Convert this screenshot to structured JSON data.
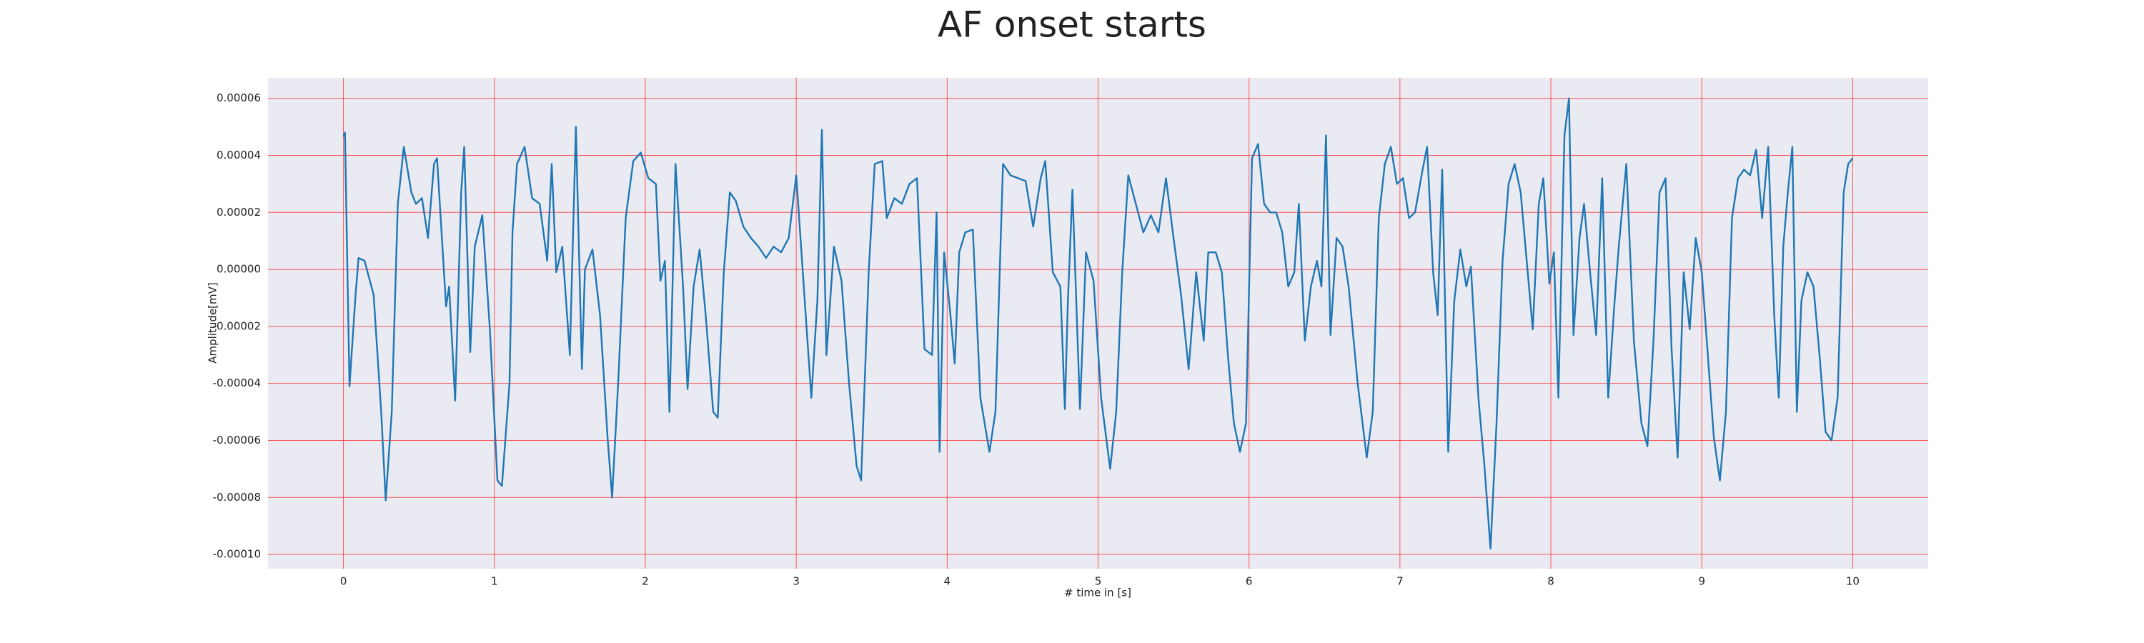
{
  "chart_data": {
    "type": "line",
    "title": "AF onset starts",
    "x_label": "# time in [s]",
    "y_label": "Amplitude[mV]",
    "color": "#1f77b4",
    "grid": true,
    "grid_color": "#ff3030",
    "background": "#eaeaf2",
    "xlim": [
      -0.5,
      10.5
    ],
    "ylim": [
      -0.000105,
      6.72e-05
    ],
    "xticks": [
      0,
      1,
      2,
      3,
      4,
      5,
      6,
      7,
      8,
      9,
      10
    ],
    "yticks": [
      {
        "value": -0.0001,
        "label": "-0.00010"
      },
      {
        "value": -8e-05,
        "label": "-0.00008"
      },
      {
        "value": -6e-05,
        "label": "-0.00006"
      },
      {
        "value": -4e-05,
        "label": "-0.00004"
      },
      {
        "value": -2e-05,
        "label": "-0.00002"
      },
      {
        "value": 0,
        "label": "0.00000"
      },
      {
        "value": 2e-05,
        "label": "0.00002"
      },
      {
        "value": 4e-05,
        "label": "0.00004"
      },
      {
        "value": 6e-05,
        "label": "0.00006"
      }
    ],
    "x": [
      0,
      0.01,
      0.04,
      0.08,
      0.1,
      0.14,
      0.2,
      0.25,
      0.28,
      0.32,
      0.36,
      0.4,
      0.45,
      0.48,
      0.52,
      0.56,
      0.6,
      0.62,
      0.68,
      0.7,
      0.74,
      0.78,
      0.8,
      0.84,
      0.87,
      0.92,
      0.97,
      1.02,
      1.05,
      1.1,
      1.12,
      1.15,
      1.2,
      1.25,
      1.3,
      1.35,
      1.38,
      1.41,
      1.45,
      1.5,
      1.54,
      1.58,
      1.6,
      1.65,
      1.7,
      1.75,
      1.78,
      1.82,
      1.87,
      1.92,
      1.97,
      2.02,
      2.07,
      2.1,
      2.13,
      2.16,
      2.2,
      2.25,
      2.28,
      2.32,
      2.36,
      2.4,
      2.45,
      2.48,
      2.52,
      2.56,
      2.6,
      2.65,
      2.7,
      2.75,
      2.8,
      2.85,
      2.9,
      2.95,
      3.0,
      3.05,
      3.1,
      3.14,
      3.17,
      3.2,
      3.25,
      3.3,
      3.35,
      3.4,
      3.43,
      3.48,
      3.52,
      3.57,
      3.6,
      3.65,
      3.7,
      3.75,
      3.8,
      3.85,
      3.9,
      3.93,
      3.95,
      3.98,
      4.02,
      4.05,
      4.08,
      4.12,
      4.17,
      4.22,
      4.28,
      4.32,
      4.37,
      4.42,
      4.47,
      4.52,
      4.57,
      4.62,
      4.65,
      4.7,
      4.75,
      4.78,
      4.8,
      4.83,
      4.88,
      4.92,
      4.97,
      5.02,
      5.08,
      5.12,
      5.16,
      5.2,
      5.25,
      5.3,
      5.35,
      5.4,
      5.45,
      5.5,
      5.55,
      5.6,
      5.65,
      5.7,
      5.73,
      5.78,
      5.82,
      5.86,
      5.9,
      5.94,
      5.98,
      6.02,
      6.06,
      6.1,
      6.14,
      6.18,
      6.22,
      6.26,
      6.3,
      6.33,
      6.37,
      6.41,
      6.45,
      6.48,
      6.51,
      6.54,
      6.58,
      6.62,
      6.66,
      6.72,
      6.78,
      6.82,
      6.86,
      6.9,
      6.94,
      6.98,
      7.02,
      7.06,
      7.1,
      7.15,
      7.18,
      7.22,
      7.25,
      7.28,
      7.32,
      7.36,
      7.4,
      7.44,
      7.47,
      7.52,
      7.56,
      7.6,
      7.64,
      7.68,
      7.72,
      7.76,
      7.8,
      7.84,
      7.88,
      7.92,
      7.95,
      7.99,
      8.02,
      8.05,
      8.09,
      8.12,
      8.15,
      8.19,
      8.22,
      8.26,
      8.3,
      8.34,
      8.38,
      8.42,
      8.45,
      8.5,
      8.55,
      8.6,
      8.64,
      8.68,
      8.72,
      8.76,
      8.8,
      8.84,
      8.88,
      8.92,
      8.96,
      9.0,
      9.04,
      9.08,
      9.12,
      9.16,
      9.2,
      9.24,
      9.28,
      9.32,
      9.36,
      9.4,
      9.44,
      9.48,
      9.51,
      9.54,
      9.57,
      9.6,
      9.63,
      9.66,
      9.7,
      9.74,
      9.78,
      9.82,
      9.86,
      9.9,
      9.94,
      9.97,
      10.0
    ],
    "values": [
      4.66e-05,
      4.8e-05,
      -4.1e-05,
      -9e-06,
      4e-06,
      3e-06,
      -9e-06,
      -5e-05,
      -8.1e-05,
      -5e-05,
      2.3e-05,
      4.3e-05,
      2.7e-05,
      2.3e-05,
      2.5e-05,
      1.1e-05,
      3.7e-05,
      3.9e-05,
      -1.3e-05,
      -6e-06,
      -4.6e-05,
      2.7e-05,
      4.3e-05,
      -2.9e-05,
      8e-06,
      1.9e-05,
      -2.1e-05,
      -7.4e-05,
      -7.6e-05,
      -4e-05,
      1.3e-05,
      3.7e-05,
      4.3e-05,
      2.5e-05,
      2.3e-05,
      3e-06,
      3.7e-05,
      -1e-06,
      8e-06,
      -3e-05,
      5e-05,
      -3.5e-05,
      0,
      7e-06,
      -1.6e-05,
      -5.9e-05,
      -8e-05,
      -4e-05,
      1.8e-05,
      3.8e-05,
      4.1e-05,
      3.2e-05,
      3e-05,
      -4e-06,
      3e-06,
      -5e-05,
      3.7e-05,
      -6e-06,
      -4.2e-05,
      -6e-06,
      7e-06,
      -1.6e-05,
      -5e-05,
      -5.2e-05,
      -1e-06,
      2.7e-05,
      2.4e-05,
      1.5e-05,
      1.1e-05,
      8e-06,
      4e-06,
      8e-06,
      6e-06,
      1.1e-05,
      3.3e-05,
      -6e-06,
      -4.5e-05,
      -1.1e-05,
      4.9e-05,
      -3e-05,
      8e-06,
      -4e-06,
      -4e-05,
      -6.9e-05,
      -7.4e-05,
      -1e-06,
      3.7e-05,
      3.8e-05,
      1.8e-05,
      2.5e-05,
      2.3e-05,
      3e-05,
      3.2e-05,
      -2.8e-05,
      -3e-05,
      2e-05,
      -6.4e-05,
      6e-06,
      -1.5e-05,
      -3.3e-05,
      6e-06,
      1.3e-05,
      1.4e-05,
      -4.5e-05,
      -6.4e-05,
      -5e-05,
      3.7e-05,
      3.3e-05,
      3.2e-05,
      3.1e-05,
      1.5e-05,
      3.2e-05,
      3.8e-05,
      -1e-06,
      -6e-06,
      -4.9e-05,
      -1.1e-05,
      2.8e-05,
      -4.9e-05,
      6e-06,
      -4e-06,
      -4.5e-05,
      -7e-05,
      -5e-05,
      -1e-06,
      3.3e-05,
      2.3e-05,
      1.3e-05,
      1.9e-05,
      1.3e-05,
      3.2e-05,
      1.1e-05,
      -9e-06,
      -3.5e-05,
      -1e-06,
      -2.5e-05,
      6e-06,
      6e-06,
      -1e-06,
      -3e-05,
      -5.4e-05,
      -6.4e-05,
      -5.4e-05,
      3.9e-05,
      4.4e-05,
      2.3e-05,
      2e-05,
      2e-05,
      1.3e-05,
      -6e-06,
      -1e-06,
      2.3e-05,
      -2.5e-05,
      -6e-06,
      3e-06,
      -6e-06,
      4.7e-05,
      -2.3e-05,
      1.1e-05,
      8e-06,
      -6e-06,
      -4e-05,
      -6.6e-05,
      -5e-05,
      1.8e-05,
      3.7e-05,
      4.3e-05,
      3e-05,
      3.2e-05,
      1.8e-05,
      2e-05,
      3.5e-05,
      4.3e-05,
      -1e-06,
      -1.6e-05,
      3.5e-05,
      -6.4e-05,
      -1.1e-05,
      7e-06,
      -6e-06,
      1e-06,
      -4.5e-05,
      -6.9e-05,
      -9.8e-05,
      -5.4e-05,
      3e-06,
      3e-05,
      3.7e-05,
      2.7e-05,
      3e-06,
      -2.1e-05,
      2.3e-05,
      3.2e-05,
      -5e-06,
      6e-06,
      -4.5e-05,
      4.7e-05,
      6e-05,
      -2.3e-05,
      1.1e-05,
      2.3e-05,
      -1e-06,
      -2.3e-05,
      3.2e-05,
      -4.5e-05,
      -1.3e-05,
      8e-06,
      3.7e-05,
      -2.5e-05,
      -5.4e-05,
      -6.2e-05,
      -2.5e-05,
      2.7e-05,
      3.2e-05,
      -2.8e-05,
      -6.6e-05,
      -1e-06,
      -2.1e-05,
      1.1e-05,
      -1e-06,
      -3e-05,
      -5.9e-05,
      -7.4e-05,
      -5e-05,
      1.8e-05,
      3.2e-05,
      3.5e-05,
      3.3e-05,
      4.2e-05,
      1.8e-05,
      4.3e-05,
      -1.6e-05,
      -4.5e-05,
      8e-06,
      2.7e-05,
      4.3e-05,
      -5e-05,
      -1.1e-05,
      -1e-06,
      -6e-06,
      -3e-05,
      -5.7e-05,
      -6e-05,
      -4.5e-05,
      2.7e-05,
      3.7e-05,
      3.9e-05
    ]
  }
}
